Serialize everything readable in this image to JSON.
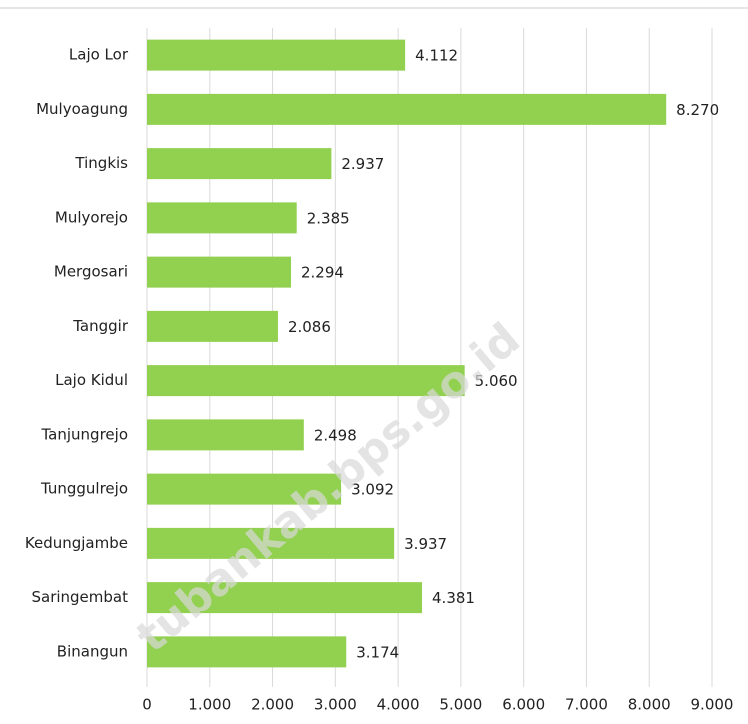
{
  "chart_data": {
    "type": "bar",
    "orientation": "horizontal",
    "categories": [
      "Lajo Lor",
      "Mulyoagung",
      "Tingkis",
      "Mulyorejo",
      "Mergosari",
      "Tanggir",
      "Lajo Kidul",
      "Tanjungrejo",
      "Tunggulrejo",
      "Kedungjambe",
      "Saringembat",
      "Binangun"
    ],
    "values": [
      4112,
      8270,
      2937,
      2385,
      2294,
      2086,
      5060,
      2498,
      3092,
      3937,
      4381,
      3174
    ],
    "value_labels": [
      "4.112",
      "8.270",
      "2.937",
      "2.385",
      "2.294",
      "2.086",
      "5.060",
      "2.498",
      "3.092",
      "3.937",
      "4.381",
      "3.174"
    ],
    "color": "#92d050",
    "xlim": [
      0,
      9000
    ],
    "xticks": [
      0,
      {
        "value": 1000,
        "label": "1.000"
      },
      {
        "value": 2000,
        "label": "2.000"
      },
      {
        "value": 3000,
        "label": "3.000"
      },
      {
        "value": 4000,
        "label": "4.000"
      },
      {
        "value": 5000,
        "label": "5.000"
      },
      {
        "value": 6000,
        "label": "6.000"
      },
      {
        "value": 7000,
        "label": "7.000"
      },
      {
        "value": 8000,
        "label": "8.000"
      },
      {
        "value": 9000,
        "label": "9.000"
      }
    ],
    "grid": true,
    "watermark": "tubankab.bps.go.id"
  }
}
